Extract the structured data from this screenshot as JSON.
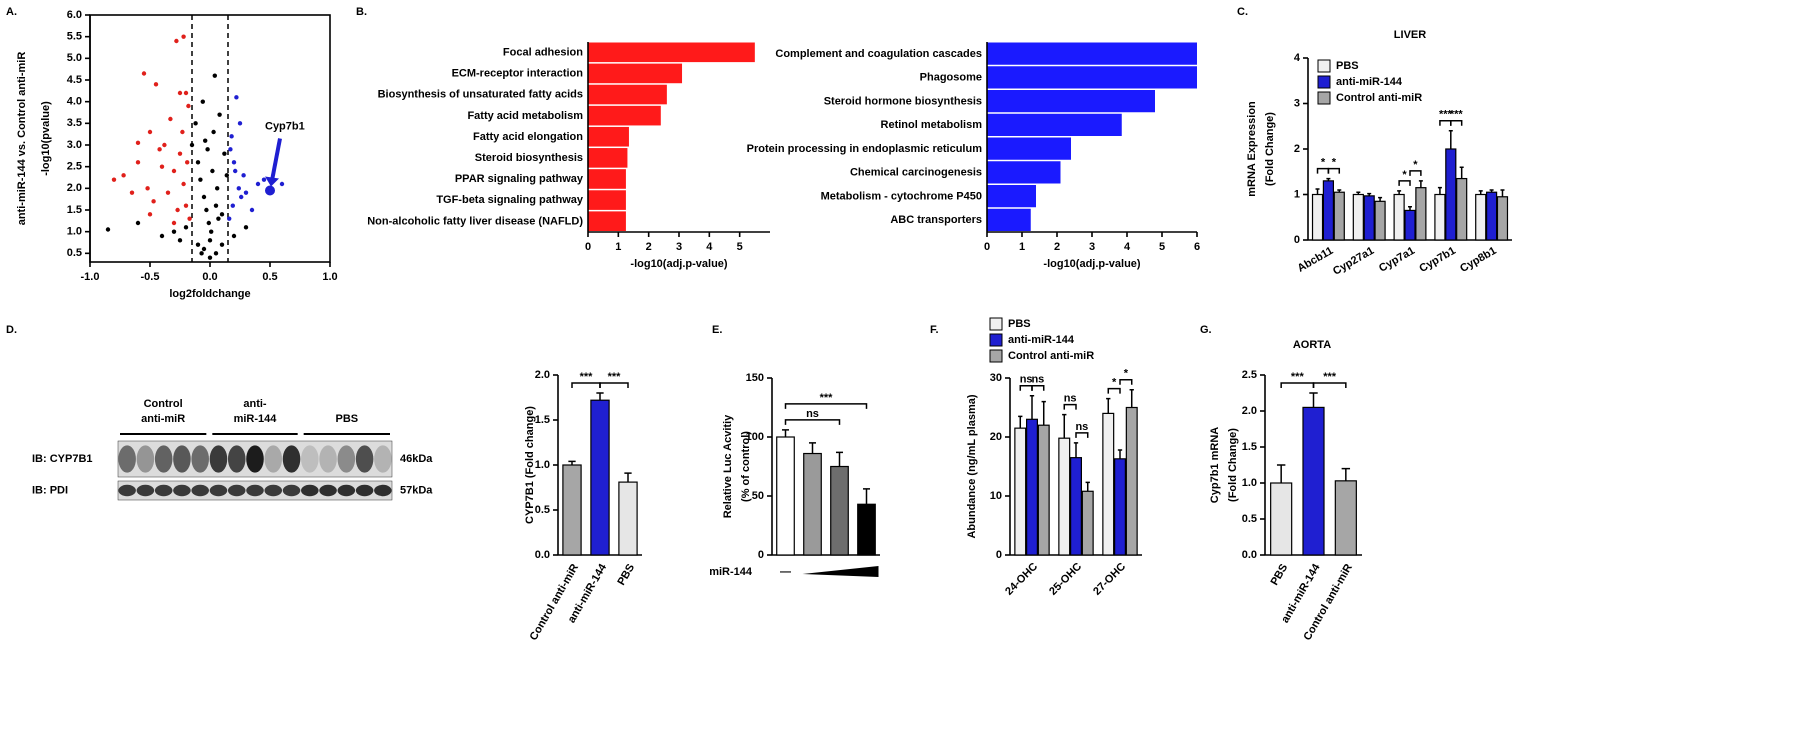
{
  "chart_data": [
    {
      "type": "scatter",
      "panel": "A.",
      "xlabel": "log2foldchange",
      "ylabel": [
        "anti-miR-144 vs. Control anti-miR",
        "-log10(pvalue)"
      ],
      "xlim": [
        -1,
        1
      ],
      "ylim": [
        0.3,
        6
      ],
      "xticks": [
        {
          "value": -1,
          "label": "-1.0"
        },
        -0.5,
        {
          "value": 0,
          "label": "0.0"
        },
        0.5,
        {
          "value": 1,
          "label": "1.0"
        }
      ],
      "yticks": [
        0.5,
        {
          "value": 1,
          "label": "1.0"
        },
        1.5,
        {
          "value": 2,
          "label": "2.0"
        },
        2.5,
        {
          "value": 3,
          "label": "3.0"
        },
        3.5,
        {
          "value": 4,
          "label": "4.0"
        },
        4.5,
        {
          "value": 5,
          "label": "5.0"
        },
        5.5,
        {
          "value": 6,
          "label": "6.0"
        }
      ],
      "vlines": [
        -0.15,
        0.15
      ],
      "series": [
        {
          "color": "#e0201b",
          "x": [
            -0.8,
            -0.72,
            -0.65,
            -0.6,
            -0.55,
            -0.52,
            -0.5,
            -0.47,
            -0.45,
            -0.42,
            -0.4,
            -0.38,
            -0.35,
            -0.33,
            -0.3,
            -0.28,
            -0.27,
            -0.25,
            -0.23,
            -0.22,
            -0.2,
            -0.2,
            -0.19,
            -0.18,
            -0.17,
            -0.5,
            -0.6,
            -0.3,
            -0.25,
            -0.22
          ],
          "y": [
            2.2,
            2.3,
            1.9,
            2.6,
            4.65,
            2.0,
            3.3,
            1.7,
            4.4,
            2.9,
            2.5,
            3.0,
            1.9,
            3.6,
            2.4,
            5.4,
            1.5,
            2.8,
            3.3,
            2.1,
            1.6,
            4.2,
            2.6,
            3.9,
            1.3,
            1.4,
            3.05,
            1.2,
            4.2,
            5.5
          ]
        },
        {
          "color": "#000000",
          "x": [
            -0.85,
            -0.6,
            -0.4,
            -0.3,
            -0.25,
            -0.2,
            -0.15,
            -0.12,
            -0.1,
            -0.08,
            -0.06,
            -0.05,
            -0.04,
            -0.03,
            -0.02,
            -0.01,
            0,
            0.01,
            0.02,
            0.03,
            0.04,
            0.05,
            0.06,
            0.08,
            0.1,
            0.12,
            0.14,
            0.2,
            0.3,
            0.05,
            -0.05,
            0.0,
            0.1,
            -0.1,
            0.07,
            -0.07
          ],
          "y": [
            1.05,
            1.2,
            0.9,
            1.0,
            0.8,
            1.1,
            3.0,
            3.5,
            2.6,
            2.2,
            4.0,
            1.8,
            3.1,
            1.5,
            2.9,
            1.2,
            0.8,
            1.0,
            2.4,
            3.3,
            4.6,
            1.6,
            2.0,
            3.7,
            1.4,
            2.8,
            2.3,
            0.9,
            1.1,
            0.5,
            0.6,
            0.4,
            0.7,
            0.7,
            1.3,
            0.5
          ]
        },
        {
          "color": "#1f1fd1",
          "x": [
            0.16,
            0.18,
            0.2,
            0.22,
            0.24,
            0.25,
            0.28,
            0.3,
            0.35,
            0.4,
            0.17,
            0.19,
            0.21,
            0.26,
            0.6,
            0.45
          ],
          "y": [
            1.3,
            3.2,
            2.6,
            4.1,
            2.0,
            3.5,
            2.3,
            1.9,
            1.5,
            2.1,
            2.9,
            1.6,
            2.4,
            1.8,
            2.1,
            2.2
          ]
        }
      ],
      "annotations": [
        {
          "text": "Cyp7b1",
          "x": 0.5,
          "y": 1.95,
          "color": "#1f1fd1"
        }
      ]
    },
    {
      "type": "hbar",
      "panel": "B.",
      "color": "#ff1a1a",
      "xlabel": "-log10(adj.p-value)",
      "xlim": [
        0,
        6
      ],
      "xticks": [
        0,
        1,
        2,
        3,
        4,
        5
      ],
      "categories": [
        "Focal adhesion",
        "ECM-receptor interaction",
        "Biosynthesis of unsaturated fatty acids",
        "Fatty acid metabolism",
        "Fatty acid elongation",
        "Steroid biosynthesis",
        "PPAR signaling pathway",
        "TGF-beta signaling pathway",
        "Non-alcoholic fatty liver disease (NAFLD)"
      ],
      "values": [
        5.5,
        3.1,
        2.6,
        2.4,
        1.35,
        1.3,
        1.25,
        1.25,
        1.25
      ]
    },
    {
      "type": "hbar",
      "color": "#1a1aff",
      "xlabel": "-log10(adj.p-value)",
      "xlim": [
        0,
        6
      ],
      "xticks": [
        0,
        1,
        2,
        3,
        4,
        5,
        6
      ],
      "categories": [
        "Complement and coagulation cascades",
        "Phagosome",
        "Steroid hormone biosynthesis",
        "Retinol metabolism",
        "Protein processing in endoplasmic reticulum",
        "Chemical carcinogenesis",
        "Metabolism - cytochrome P450",
        "ABC transporters"
      ],
      "values": [
        6.0,
        6.0,
        4.8,
        3.85,
        2.4,
        2.1,
        1.4,
        1.25
      ]
    },
    {
      "type": "bar",
      "panel": "C.",
      "title": "LIVER",
      "ylabel": [
        "mRNA Expression",
        "(Fold Change)"
      ],
      "category_style": "italic",
      "legend": true,
      "categories": [
        "Abcb11",
        "Cyp27a1",
        "Cyp7a1",
        "Cyp7b1",
        "Cyp8b1"
      ],
      "ylim": [
        0,
        4
      ],
      "yticks": [
        0,
        1,
        2,
        3,
        4
      ],
      "series": [
        {
          "name": "PBS",
          "color": "#f0f0f0",
          "values": [
            1.0,
            1.0,
            1.0,
            1.0,
            1.0
          ],
          "errors": [
            0.12,
            0.05,
            0.08,
            0.15,
            0.08
          ]
        },
        {
          "name": "anti-miR-144",
          "color": "#1f1fd1",
          "values": [
            1.3,
            0.97,
            0.65,
            2.0,
            1.05
          ],
          "errors": [
            0.05,
            0.05,
            0.08,
            0.4,
            0.05
          ]
        },
        {
          "name": "Control anti-miR",
          "color": "#a6a6a6",
          "values": [
            1.05,
            0.85,
            1.15,
            1.35,
            0.95
          ],
          "errors": [
            0.05,
            0.08,
            0.15,
            0.25,
            0.15
          ]
        }
      ],
      "significance": [
        {
          "label": "*",
          "category": 0,
          "between": [
            0,
            1
          ]
        },
        {
          "label": "*",
          "category": 0,
          "between": [
            1,
            2
          ]
        },
        {
          "label": "*",
          "category": 2,
          "between": [
            0,
            1
          ]
        },
        {
          "label": "*",
          "category": 2,
          "between": [
            1,
            2
          ]
        },
        {
          "label": "***",
          "category": 3,
          "between": [
            0,
            1
          ]
        },
        {
          "label": "***",
          "category": 3,
          "between": [
            1,
            2
          ]
        }
      ]
    },
    {
      "type": "bar",
      "panel": "D.",
      "ylabel": [
        "CYP7B1 (Fold change)"
      ],
      "categories": [
        "Control anti-miR",
        "anti-miR-144",
        "PBS"
      ],
      "values": [
        1.0,
        1.72,
        0.81
      ],
      "errors": [
        0.04,
        0.08,
        0.1
      ],
      "colors": [
        "#a6a6a6",
        "#1f1fd1",
        "#e6e6e6"
      ],
      "ylim": [
        0,
        2
      ],
      "yticks": [
        {
          "value": 0,
          "label": "0.0"
        },
        0.5,
        {
          "value": 1,
          "label": "1.0"
        },
        1.5,
        {
          "value": 2,
          "label": "2.0"
        }
      ],
      "significance": [
        {
          "label": "***",
          "between": [
            0,
            1
          ]
        },
        {
          "label": "***",
          "between": [
            1,
            2
          ]
        }
      ]
    },
    {
      "type": "bar",
      "panel": "E.",
      "ylabel": [
        "Relative Luc Acvitiy",
        "(% of control)"
      ],
      "xlabel": "miR-144",
      "categories": [
        "—",
        null,
        null,
        null
      ],
      "values": [
        100,
        86,
        75,
        43
      ],
      "errors": [
        6,
        9,
        12,
        13
      ],
      "colors": [
        "#ffffff",
        "#9a9a9a",
        "#6e6e6e",
        "#000000"
      ],
      "ylim": [
        0,
        150
      ],
      "yticks": [
        0,
        50,
        100,
        150
      ],
      "significance": [
        {
          "label": "ns",
          "between": [
            0,
            2
          ]
        },
        {
          "label": "***",
          "between": [
            0,
            3
          ]
        }
      ]
    },
    {
      "type": "bar",
      "panel": "F.",
      "ylabel": [
        "Abundance (ng/mL plasma)"
      ],
      "legend": true,
      "categories": [
        "24-OHC",
        "25-OHC",
        "27-OHC"
      ],
      "ylim": [
        0,
        30
      ],
      "yticks": [
        0,
        10,
        20,
        30
      ],
      "series": [
        {
          "name": "PBS",
          "color": "#f0f0f0",
          "values": [
            21.5,
            19.8,
            24
          ],
          "errors": [
            2,
            4,
            2.5
          ]
        },
        {
          "name": "anti-miR-144",
          "color": "#1f1fd1",
          "values": [
            23,
            16.5,
            16.3
          ],
          "errors": [
            4,
            2.5,
            1.5
          ]
        },
        {
          "name": "Control anti-miR",
          "color": "#a6a6a6",
          "values": [
            22,
            10.8,
            25
          ],
          "errors": [
            4,
            1.5,
            3
          ]
        }
      ],
      "significance": [
        {
          "label": "ns",
          "category": 0,
          "between": [
            0,
            1
          ]
        },
        {
          "label": "ns",
          "category": 0,
          "between": [
            1,
            2
          ]
        },
        {
          "label": "ns",
          "category": 1,
          "between": [
            0,
            1
          ]
        },
        {
          "label": "ns",
          "category": 1,
          "between": [
            1,
            2
          ]
        },
        {
          "label": "*",
          "category": 2,
          "between": [
            0,
            1
          ]
        },
        {
          "label": "*",
          "category": 2,
          "between": [
            1,
            2
          ]
        }
      ]
    },
    {
      "type": "bar",
      "panel": "G.",
      "title": "AORTA",
      "ylabel": [
        "Cyp7b1 mRNA",
        "(Fold Change)"
      ],
      "categories": [
        "PBS",
        "anti-miR-144",
        "Control anti-miR"
      ],
      "values": [
        1.0,
        2.05,
        1.03
      ],
      "errors": [
        0.25,
        0.2,
        0.17
      ],
      "colors": [
        "#e6e6e6",
        "#1f1fd1",
        "#a6a6a6"
      ],
      "ylim": [
        0,
        2.5
      ],
      "yticks": [
        {
          "value": 0,
          "label": "0.0"
        },
        0.5,
        {
          "value": 1,
          "label": "1.0"
        },
        1.5,
        {
          "value": 2,
          "label": "2.0"
        },
        2.5
      ],
      "significance": [
        {
          "label": "***",
          "between": [
            0,
            1
          ]
        },
        {
          "label": "***",
          "between": [
            1,
            2
          ]
        }
      ]
    }
  ],
  "blot": {
    "groups": [
      [
        "Control",
        "anti-miR"
      ],
      [
        "anti-",
        "miR-144"
      ],
      [
        "PBS"
      ]
    ],
    "rows": [
      {
        "label": "IB: CYP7B1",
        "size": "46kDa"
      },
      {
        "label": "IB: PDI",
        "size": "57kDa"
      }
    ]
  }
}
